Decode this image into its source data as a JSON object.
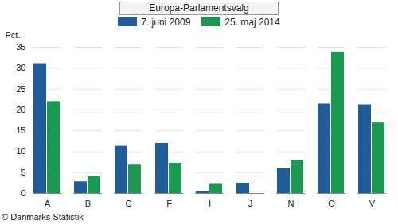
{
  "chart_data": {
    "type": "bar",
    "title": "Europa-Parlamentsvalg",
    "y_label": "Pct.",
    "caption": "© Danmarks Statistik",
    "categories": [
      "A",
      "B",
      "C",
      "F",
      "I",
      "J",
      "N",
      "O",
      "V"
    ],
    "series": [
      {
        "name": "7. juni 2009",
        "color": "#1f5c99",
        "values": [
          31.1,
          2.8,
          11.3,
          12.0,
          0.5,
          2.4,
          5.9,
          21.4,
          21.2
        ]
      },
      {
        "name": "25. maj 2014",
        "color": "#1a9a50",
        "values": [
          22.0,
          4.0,
          6.8,
          7.2,
          2.2,
          null,
          7.8,
          33.9,
          16.9
        ]
      }
    ],
    "ylim": [
      0,
      35
    ],
    "yticks": [
      0,
      5,
      10,
      15,
      20,
      25,
      30,
      35
    ],
    "grid": true,
    "legend": "top"
  }
}
